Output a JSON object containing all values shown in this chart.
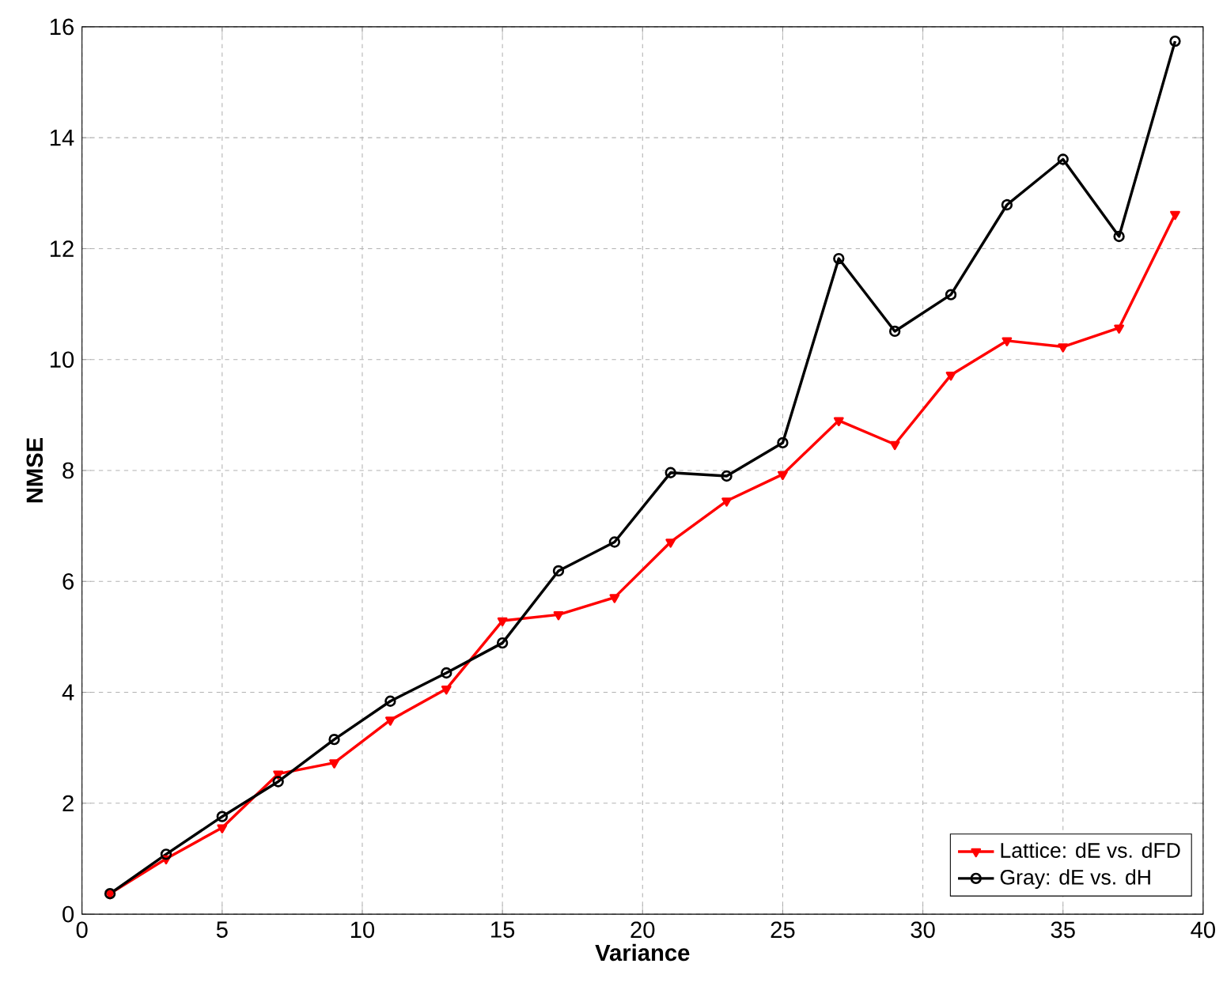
{
  "chart_data": {
    "type": "line",
    "xlabel": "Variance",
    "ylabel": "NMSE",
    "x": [
      1,
      3,
      5,
      7,
      9,
      11,
      13,
      15,
      17,
      19,
      21,
      23,
      25,
      27,
      29,
      31,
      33,
      35,
      37,
      39
    ],
    "series": [
      {
        "name": "Lattice: dE vs. dFD",
        "color": "#ff0000",
        "marker": "triangle",
        "values": [
          0.37,
          1.0,
          1.56,
          2.53,
          2.73,
          3.5,
          4.06,
          5.29,
          5.4,
          5.71,
          6.71,
          7.45,
          7.93,
          8.9,
          8.47,
          9.72,
          10.34,
          10.23,
          10.57,
          12.62
        ]
      },
      {
        "name": "Gray: dE vs. dH",
        "color": "#000000",
        "marker": "circle",
        "values": [
          0.37,
          1.08,
          1.76,
          2.39,
          3.15,
          3.84,
          4.35,
          4.89,
          6.19,
          6.71,
          7.96,
          7.9,
          8.5,
          11.82,
          10.51,
          11.17,
          12.79,
          13.61,
          12.22,
          15.74
        ]
      }
    ],
    "xlim": [
      0,
      40
    ],
    "xticks": [
      0,
      5,
      10,
      15,
      20,
      25,
      30,
      35,
      40
    ],
    "ylim": [
      0,
      16
    ],
    "yticks": [
      0,
      2,
      4,
      6,
      8,
      10,
      12,
      14,
      16
    ],
    "grid": true,
    "legend": "bottom right",
    "line_style": "solid"
  }
}
